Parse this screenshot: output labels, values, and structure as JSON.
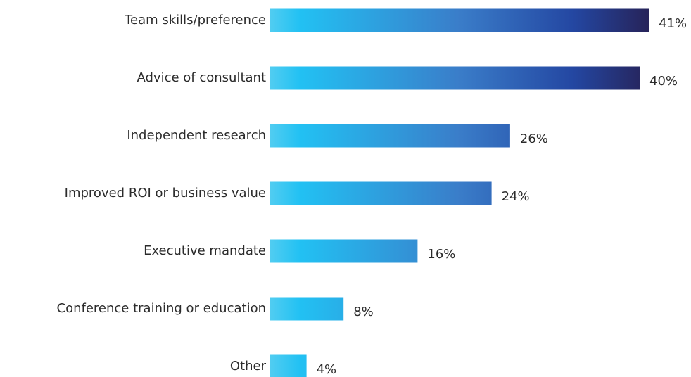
{
  "chart_data": {
    "type": "barh",
    "categories": [
      "Team skills/preference",
      "Advice of consultant",
      "Independent research",
      "Improved ROI or business value",
      "Executive mandate",
      "Conference training or education",
      "Other"
    ],
    "values": [
      41,
      40,
      26,
      24,
      16,
      8,
      4
    ],
    "value_labels": [
      "41%",
      "40%",
      "26%",
      "24%",
      "16%",
      "8%",
      "4%"
    ],
    "gradient_colors": [
      "#52cdf1",
      "#22c1f3",
      "#3a7dc9",
      "#2447a2",
      "#262359"
    ]
  }
}
